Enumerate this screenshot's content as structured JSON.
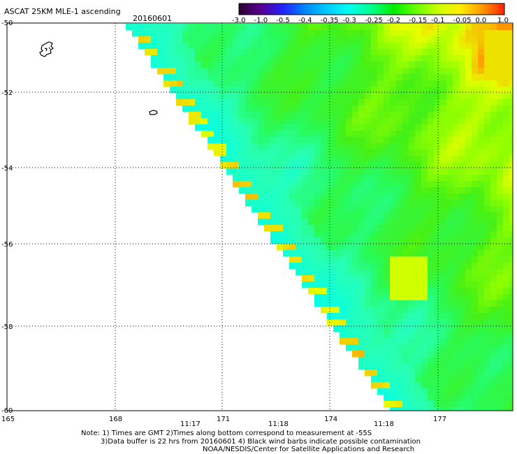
{
  "header": {
    "title": "ASCAT 25KM MLE-1 ascending",
    "date": "20160601"
  },
  "colorbar": {
    "labels": [
      "-3.0",
      "-1.0",
      "-0.5",
      "-0.4",
      "-0.35",
      "-0.3",
      "-0.25",
      "-0.2",
      "-0.15",
      "-0.1",
      "-0.05",
      "0.0",
      "1.0"
    ],
    "colors": [
      "#2a0030",
      "#5a0090",
      "#2222ff",
      "#0088ff",
      "#00ccff",
      "#00ffee",
      "#00ff88",
      "#00ee00",
      "#66ff00",
      "#ccff00",
      "#ffee00",
      "#ff9900",
      "#ff2200"
    ]
  },
  "map": {
    "lon_ticks": [
      "165",
      "168",
      "171",
      "174",
      "177"
    ],
    "lat_ticks": [
      "-50",
      "-52",
      "-54",
      "-56",
      "-58",
      "-60"
    ],
    "times": [
      "11:17",
      "11:18",
      "11:18"
    ]
  },
  "notes": {
    "line1": "Note: 1) Times are GMT 2)Times along bottom correspond to measurement at -55S",
    "line2": "3)Data buffer is 22 hrs from 20160601 4) Black wind barbs indicate possible contamination",
    "line3": "NOAA/NESDIS/Center for Satellite Applications and Research"
  }
}
